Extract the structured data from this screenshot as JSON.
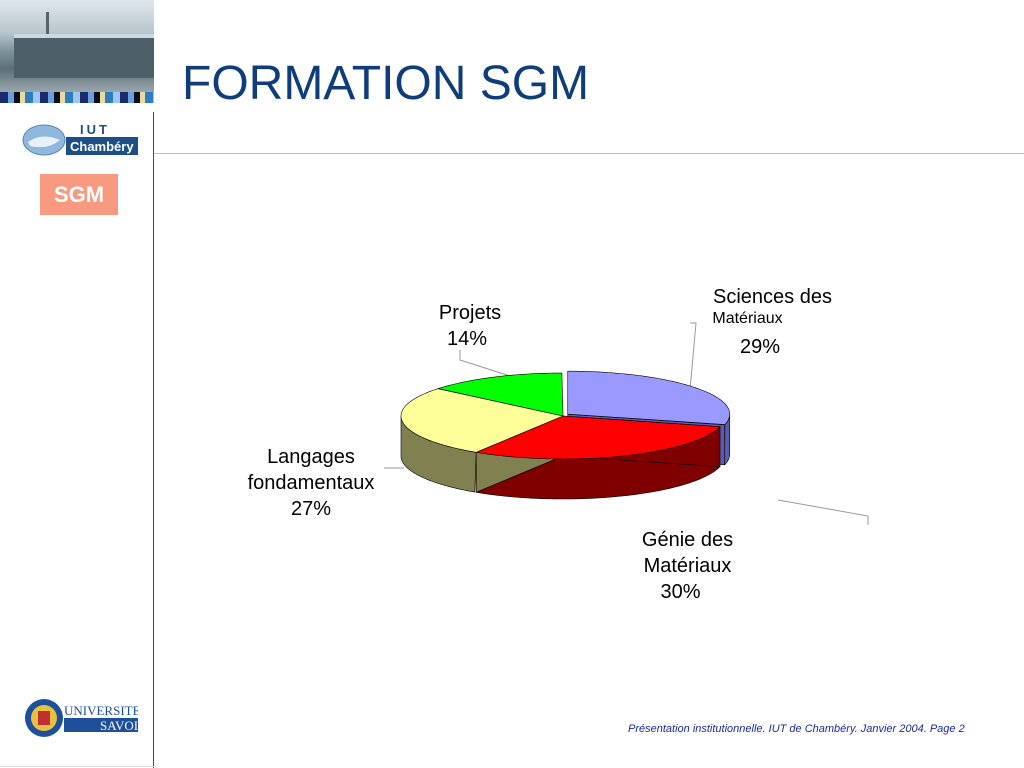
{
  "slide": {
    "title": "FORMATION SGM",
    "badge": "SGM",
    "footer": "Présentation institutionnelle. IUT de Chambéry. Janvier 2004. Page 2",
    "logos": {
      "iut_top": "IUT",
      "iut_bottom": "Chambéry",
      "univ_top": "UNIVERSITE",
      "univ_bottom": "SAVOIE"
    }
  },
  "chart_data": {
    "type": "pie",
    "style": "3d",
    "start": "top",
    "direction": "clockwise",
    "slices": [
      {
        "name_line1": "Sciences des",
        "name_line2": "Matériaux",
        "label": "29%",
        "value": 29,
        "color": "#9999ff",
        "side": "#5c5cb0",
        "exploded": true
      },
      {
        "name_line1": "Génie des",
        "name_line2": "Matériaux",
        "label": "30%",
        "value": 30,
        "color": "#ff0000",
        "side": "#800000"
      },
      {
        "name_line1": "Langages",
        "name_line2": "fondamentaux",
        "label": "27%",
        "value": 27,
        "color": "#ffff99",
        "side": "#808050"
      },
      {
        "name_line1": "Projets",
        "name_line2": "",
        "label": "14%",
        "value": 14,
        "color": "#00ff00",
        "side": "#008000"
      }
    ]
  }
}
